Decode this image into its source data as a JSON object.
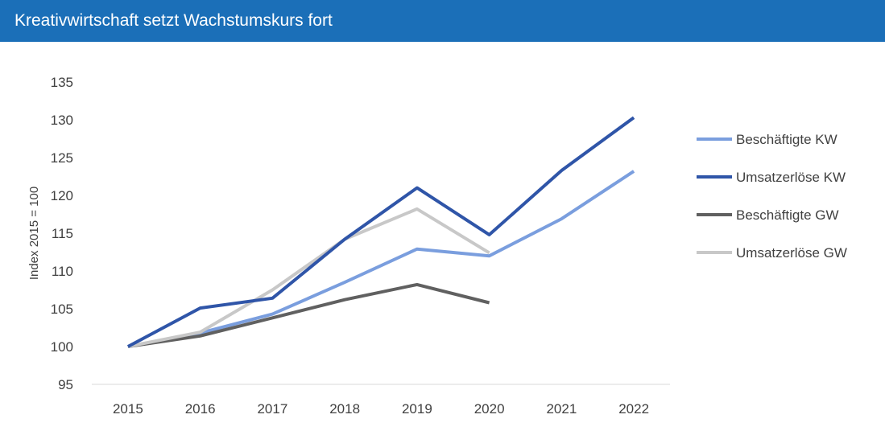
{
  "header": {
    "title": "Kreativwirtschaft setzt Wachstumskurs fort",
    "background_color": "#1b6fb8"
  },
  "chart_data": {
    "type": "line",
    "title": "Kreativwirtschaft setzt Wachstumskurs fort",
    "xlabel": "",
    "ylabel": "Index 2015 = 100",
    "x": [
      "2015",
      "2016",
      "2017",
      "2018",
      "2019",
      "2020",
      "2021",
      "2022"
    ],
    "ylim": [
      95,
      135
    ],
    "yticks": [
      95,
      100,
      105,
      110,
      115,
      120,
      125,
      130,
      135
    ],
    "grid": false,
    "legend_position": "right",
    "series": [
      {
        "name": "Beschäftigte KW",
        "color": "#7a9ede",
        "values": [
          100,
          101.8,
          104.3,
          108.5,
          112.9,
          112.0,
          116.9,
          123.2
        ]
      },
      {
        "name": "Umsatzerlöse KW",
        "color": "#2f55a8",
        "values": [
          100,
          105.1,
          106.4,
          114.2,
          121.0,
          114.8,
          123.3,
          130.3
        ]
      },
      {
        "name": "Beschäftigte GW",
        "color": "#606060",
        "values": [
          100,
          101.4,
          103.8,
          106.2,
          108.2,
          105.8,
          null,
          null
        ]
      },
      {
        "name": "Umsatzerlöse GW",
        "color": "#c8c8c8",
        "values": [
          100,
          101.9,
          107.5,
          114.2,
          118.2,
          112.4,
          null,
          null
        ]
      }
    ]
  }
}
